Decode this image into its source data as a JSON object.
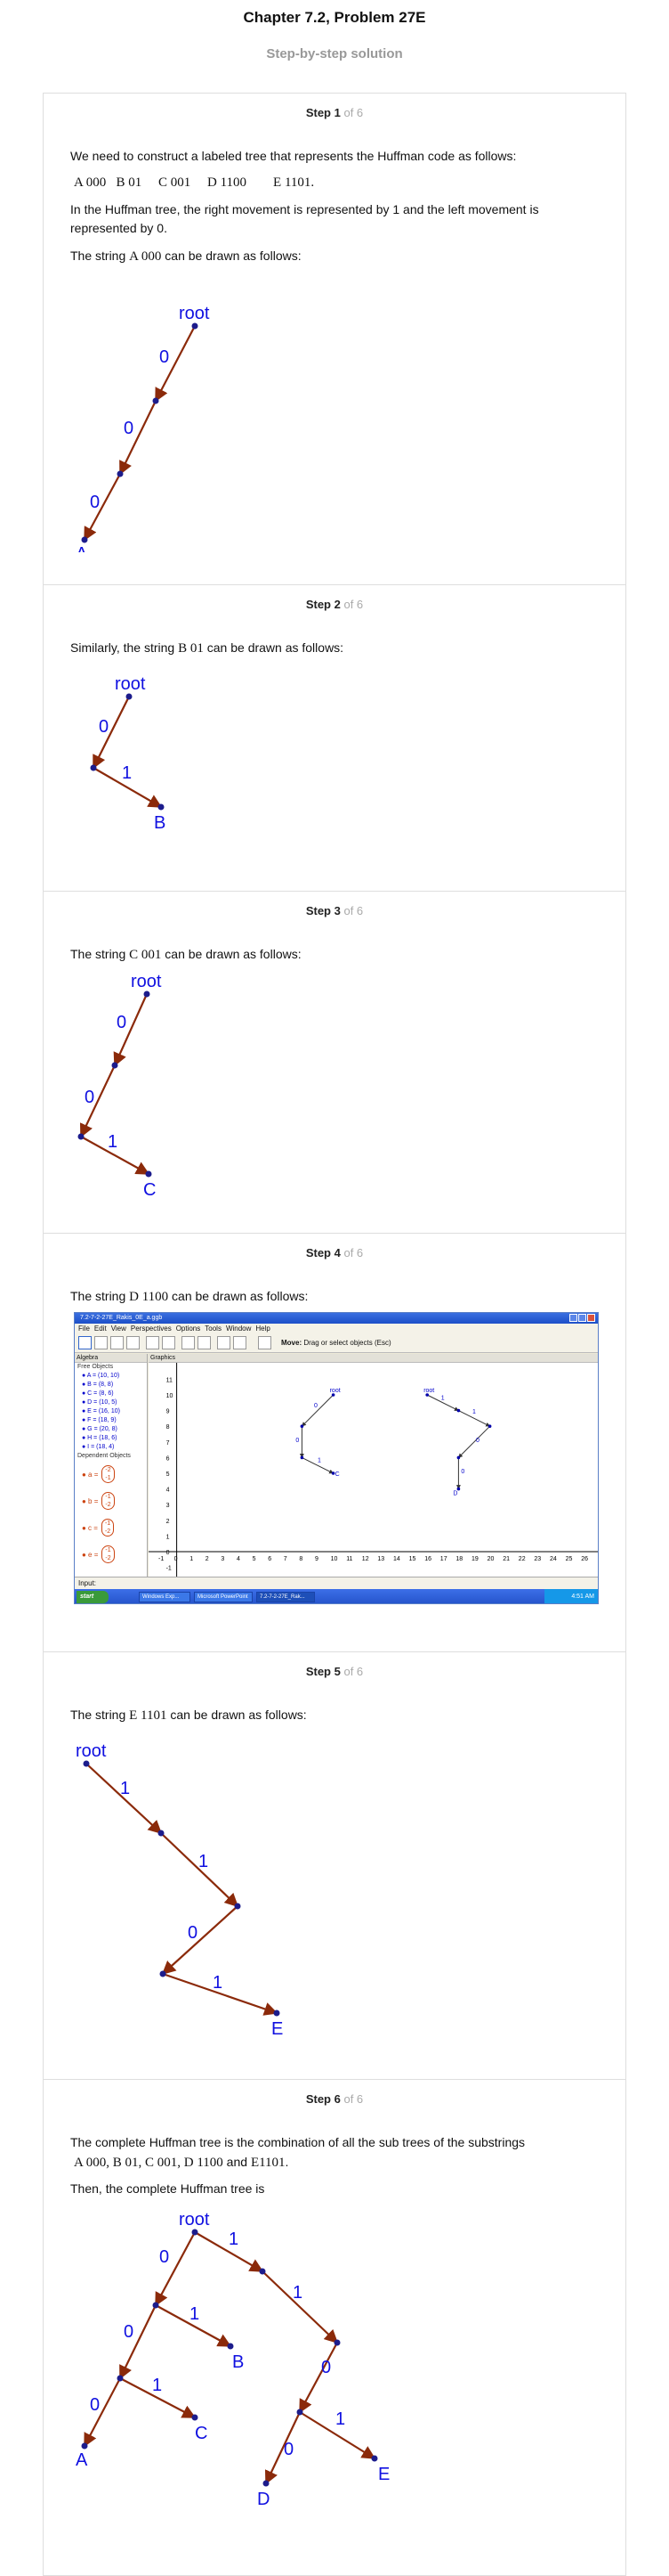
{
  "header": {
    "title": "Chapter 7.2, Problem 27E",
    "subtitle": "Step-by-step solution"
  },
  "steps": [
    {
      "label": "Step 1",
      "of": "of 6"
    },
    {
      "label": "Step 2",
      "of": "of 6"
    },
    {
      "label": "Step 3",
      "of": "of 6"
    },
    {
      "label": "Step 4",
      "of": "of 6"
    },
    {
      "label": "Step 5",
      "of": "of 6"
    },
    {
      "label": "Step 6",
      "of": "of 6"
    }
  ],
  "step1": {
    "intro": "We need to construct a labeled tree that represents the Huffman code as follows:",
    "codes": "A 000   B 01     C 001     D 1100        E 1101.",
    "movement": "In the Huffman tree, the right movement is represented by 1 and the left movement is represented by 0.",
    "string_pre": "The string ",
    "string_code": "A 000",
    "string_post": " can be drawn as follows:"
  },
  "step2": {
    "string_pre": "Similarly, the string ",
    "string_code": "B 01",
    "string_post": " can be drawn as follows:"
  },
  "step3": {
    "string_pre": "The string ",
    "string_code": "C 001",
    "string_post": " can be drawn as follows:"
  },
  "step4": {
    "string_pre": "The string ",
    "string_code": "D 1100",
    "string_post": " can be drawn as follows:"
  },
  "step5": {
    "string_pre": "The string ",
    "string_code": "E 1101",
    "string_post": " can be drawn as follows:"
  },
  "step6": {
    "intro": "The complete Huffman tree is the combination of all the sub trees of the substrings",
    "codes_a": "A 000, B 01, C 001, D 1100",
    "codes_and": " and ",
    "codes_e": "E1101",
    "codes_end": ".",
    "then": "Then, the complete Huffman tree is"
  },
  "tree": {
    "root": "root",
    "zero": "0",
    "one": "1",
    "A": "A",
    "B": "B",
    "C": "C",
    "D": "D",
    "E": "E"
  },
  "geogebra": {
    "window_title": "7.2-7-2-27E_Rakis_0E_a.ggb",
    "menu": [
      "File",
      "Edit",
      "View",
      "Perspectives",
      "Options",
      "Tools",
      "Window",
      "Help"
    ],
    "tool_hint_bold": "Move:",
    "tool_hint": "Drag or select objects (Esc)",
    "algebra_title": "Algebra",
    "graphics_title": "Graphics",
    "free_objects": "Free Objects",
    "points": [
      "A = (10, 10)",
      "B = (8, 8)",
      "C = (8, 6)",
      "D = (10, 5)",
      "E = (16, 10)",
      "F = (18, 9)",
      "G = (20, 8)",
      "H = (18, 6)",
      "I = (18, 4)"
    ],
    "dependent_objects": "Dependent Objects",
    "vectors": [
      {
        "name": "a =",
        "top": "-2",
        "bottom": "-1"
      },
      {
        "name": "b =",
        "top": "-1",
        "bottom": "-2"
      },
      {
        "name": "c =",
        "top": "-1",
        "bottom": "-2"
      },
      {
        "name": "e =",
        "top": "-1",
        "bottom": "-2"
      }
    ],
    "input_label": "Input:",
    "start": "start",
    "tasks": [
      "Windows Exp...",
      "Microsoft PowerPoint ...",
      "7.2-7-2-27E_Rak..."
    ],
    "clock": "4:51 AM",
    "y_ticks": [
      "11",
      "10",
      "9",
      "8",
      "7",
      "6",
      "5",
      "4",
      "3",
      "2",
      "1",
      "0",
      "-1"
    ],
    "x_ticks": [
      "-1",
      "0",
      "1",
      "2",
      "3",
      "4",
      "5",
      "6",
      "7",
      "8",
      "9",
      "10",
      "11",
      "12",
      "13",
      "14",
      "15",
      "16",
      "17",
      "18",
      "19",
      "20",
      "21",
      "22",
      "23",
      "24",
      "25",
      "26"
    ],
    "label_root": "root",
    "label_zero": "0",
    "label_one": "1",
    "label_c": "C",
    "label_d": "D"
  },
  "colors": {
    "edge": "#8b2a0a",
    "node": "#1c1c8c",
    "label": "#1010e0"
  }
}
